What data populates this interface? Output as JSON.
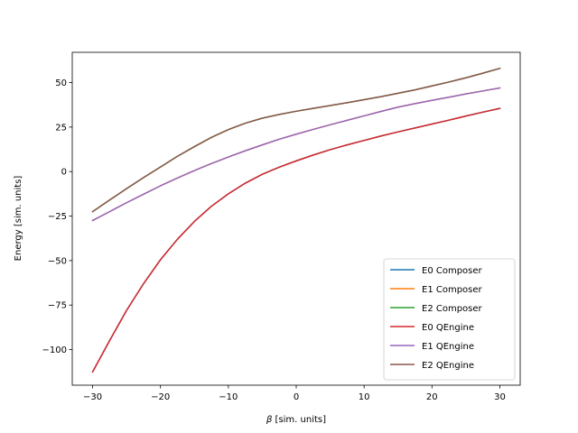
{
  "chart_data": {
    "type": "line",
    "title": "",
    "xlabel_symbol": "β",
    "xlabel_rest": " [sim. units]",
    "ylabel": "Energy [sim. units]",
    "xlim": [
      -33,
      33
    ],
    "ylim": [
      -120,
      67
    ],
    "xticks": [
      -30,
      -20,
      -10,
      0,
      10,
      20,
      30
    ],
    "yticks": [
      -100,
      -75,
      -50,
      -25,
      0,
      25,
      50
    ],
    "legend_position": "lower-right",
    "grid": false,
    "x": [
      -30,
      -27.5,
      -25,
      -22.5,
      -20,
      -17.5,
      -15,
      -12.5,
      -10,
      -7.5,
      -5,
      -2.5,
      0,
      2.5,
      5,
      7.5,
      10,
      12.5,
      15,
      17.5,
      20,
      22.5,
      25,
      27.5,
      30
    ],
    "series": [
      {
        "name": "E0 Composer",
        "color": "#1f77b4",
        "values": [
          -112.5,
          -95.0,
          -78.0,
          -63.0,
          -49.5,
          -38.0,
          -28.0,
          -19.5,
          -12.5,
          -6.5,
          -1.5,
          2.5,
          6.0,
          9.3,
          12.3,
          15.0,
          17.5,
          20.0,
          22.3,
          24.5,
          26.7,
          28.9,
          31.2,
          33.4,
          35.5
        ]
      },
      {
        "name": "E1 Composer",
        "color": "#ff7f0e",
        "values": [
          -27.5,
          -22.5,
          -17.5,
          -12.7,
          -8.0,
          -3.6,
          0.6,
          4.5,
          8.2,
          11.7,
          15.0,
          18.2,
          21.0,
          23.7,
          26.3,
          28.8,
          31.3,
          33.8,
          36.2,
          38.2,
          40.0,
          41.8,
          43.6,
          45.3,
          47.0
        ]
      },
      {
        "name": "E2 Composer",
        "color": "#2ca02c",
        "values": [
          -22.5,
          -16.0,
          -9.6,
          -3.4,
          2.6,
          8.6,
          14.0,
          19.2,
          23.6,
          27.2,
          30.0,
          32.1,
          33.9,
          35.5,
          37.1,
          38.7,
          40.4,
          42.1,
          44.0,
          45.9,
          48.1,
          50.3,
          52.7,
          55.3,
          58.0
        ]
      },
      {
        "name": "E0 QEngine",
        "color": "#d62728",
        "values": [
          -112.5,
          -95.0,
          -78.0,
          -63.0,
          -49.5,
          -38.0,
          -28.0,
          -19.5,
          -12.5,
          -6.5,
          -1.5,
          2.5,
          6.0,
          9.3,
          12.3,
          15.0,
          17.5,
          20.0,
          22.3,
          24.5,
          26.7,
          28.9,
          31.2,
          33.4,
          35.5
        ]
      },
      {
        "name": "E1 QEngine",
        "color": "#9467bd",
        "values": [
          -27.5,
          -22.5,
          -17.5,
          -12.7,
          -8.0,
          -3.6,
          0.6,
          4.5,
          8.2,
          11.7,
          15.0,
          18.2,
          21.0,
          23.7,
          26.3,
          28.8,
          31.3,
          33.8,
          36.2,
          38.2,
          40.0,
          41.8,
          43.6,
          45.3,
          47.0
        ]
      },
      {
        "name": "E2 QEngine",
        "color": "#8c564b",
        "values": [
          -22.5,
          -16.0,
          -9.6,
          -3.4,
          2.6,
          8.6,
          14.0,
          19.2,
          23.6,
          27.2,
          30.0,
          32.1,
          33.9,
          35.5,
          37.1,
          38.7,
          40.4,
          42.1,
          44.0,
          45.9,
          48.1,
          50.3,
          52.7,
          55.3,
          58.0
        ]
      }
    ]
  }
}
